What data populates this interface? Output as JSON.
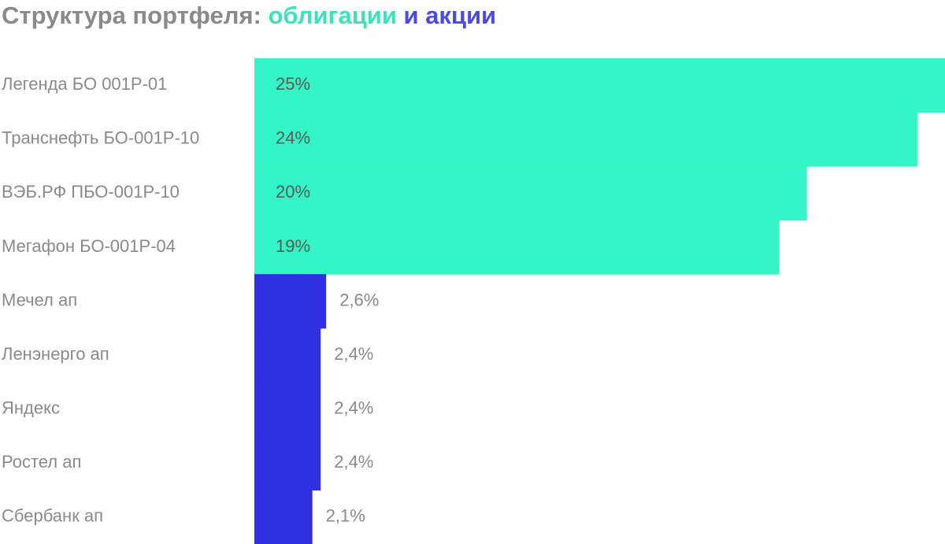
{
  "chart_data": {
    "type": "bar",
    "orientation": "horizontal",
    "title": [
      "Структура портфеля:",
      "облигации",
      "и акции"
    ],
    "title_colors": [
      "#8a8a8a",
      "#3be3b6",
      "#4a4ae6"
    ],
    "categories": [
      "Легенда БО 001P-01",
      "Транснефть БО-001Р-10",
      "ВЭБ.РФ ПБО-001Р-10",
      "Мегафон БО-001Р-04",
      "Мечел ап",
      "Ленэнерго ап",
      "Яндекс",
      "Ростел ап",
      "Сбербанк ап"
    ],
    "values": [
      25,
      24,
      20,
      19,
      2.6,
      2.4,
      2.4,
      2.4,
      2.1
    ],
    "value_labels": [
      "25%",
      "24%",
      "20%",
      "19%",
      "2,6%",
      "2,4%",
      "2,4%",
      "2,4%",
      "2,1%"
    ],
    "colors": [
      "#33f5c5",
      "#33f5c5",
      "#33f5c5",
      "#33f5c5",
      "#2f2fe3",
      "#2f2fe3",
      "#2f2fe3",
      "#2f2fe3",
      "#2f2fe3"
    ],
    "xlim": [
      0,
      25
    ]
  }
}
